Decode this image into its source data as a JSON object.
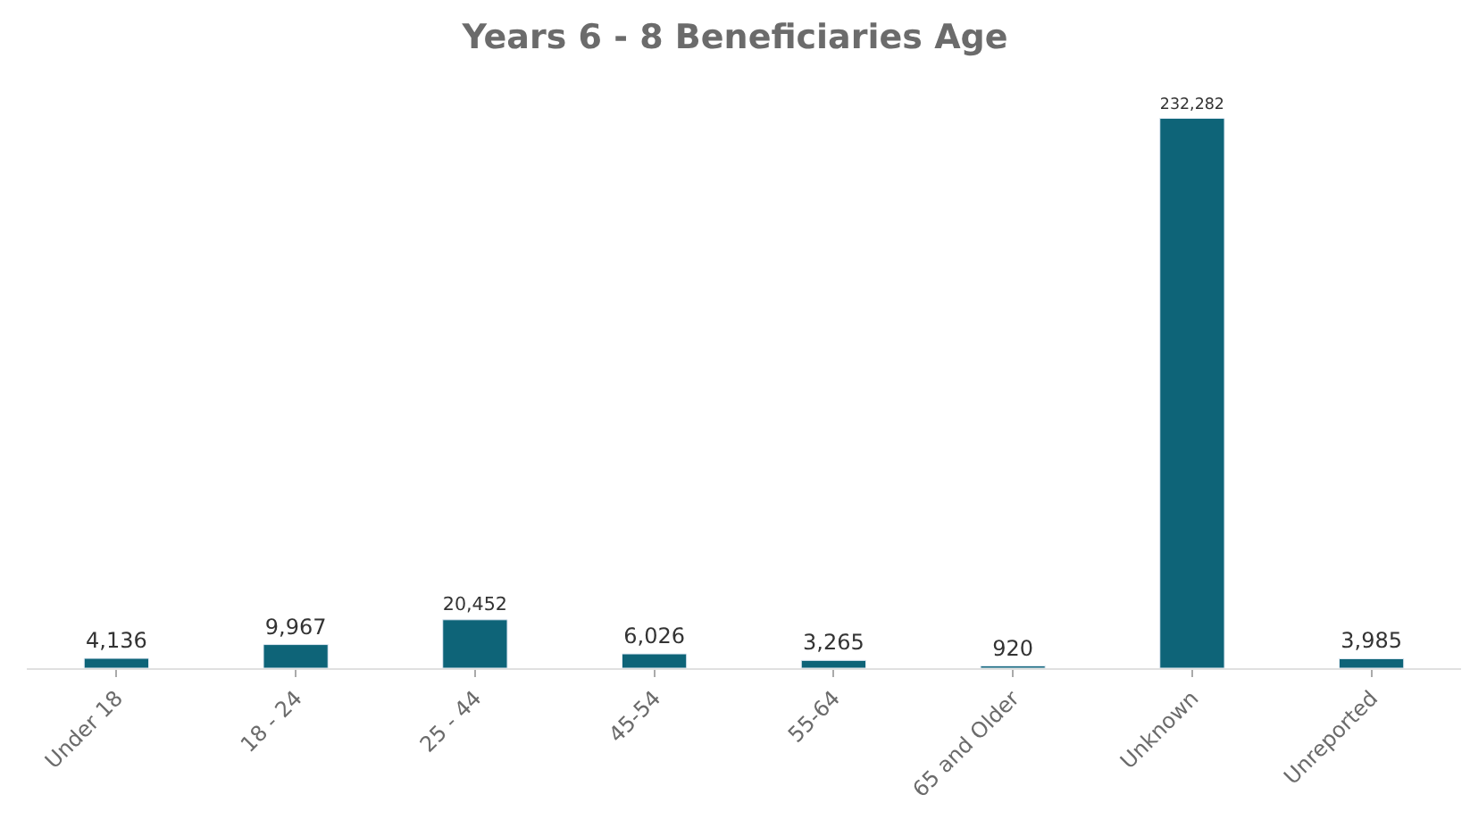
{
  "chart_data": {
    "type": "bar",
    "title": "Years 6 - 8 Beneficiaries Age",
    "categories": [
      "Under 18",
      "18 - 24",
      "25 - 44",
      "45-54",
      "55-64",
      "65 and Older",
      "Unknown",
      "Unreported"
    ],
    "values": [
      4136,
      9967,
      20452,
      6026,
      3265,
      920,
      232282,
      3985
    ],
    "value_labels": [
      "4,136",
      "9,967",
      "20,452",
      "6,026",
      "3,265",
      "920",
      "232,282",
      "3,985"
    ],
    "color": "#0e6478"
  }
}
